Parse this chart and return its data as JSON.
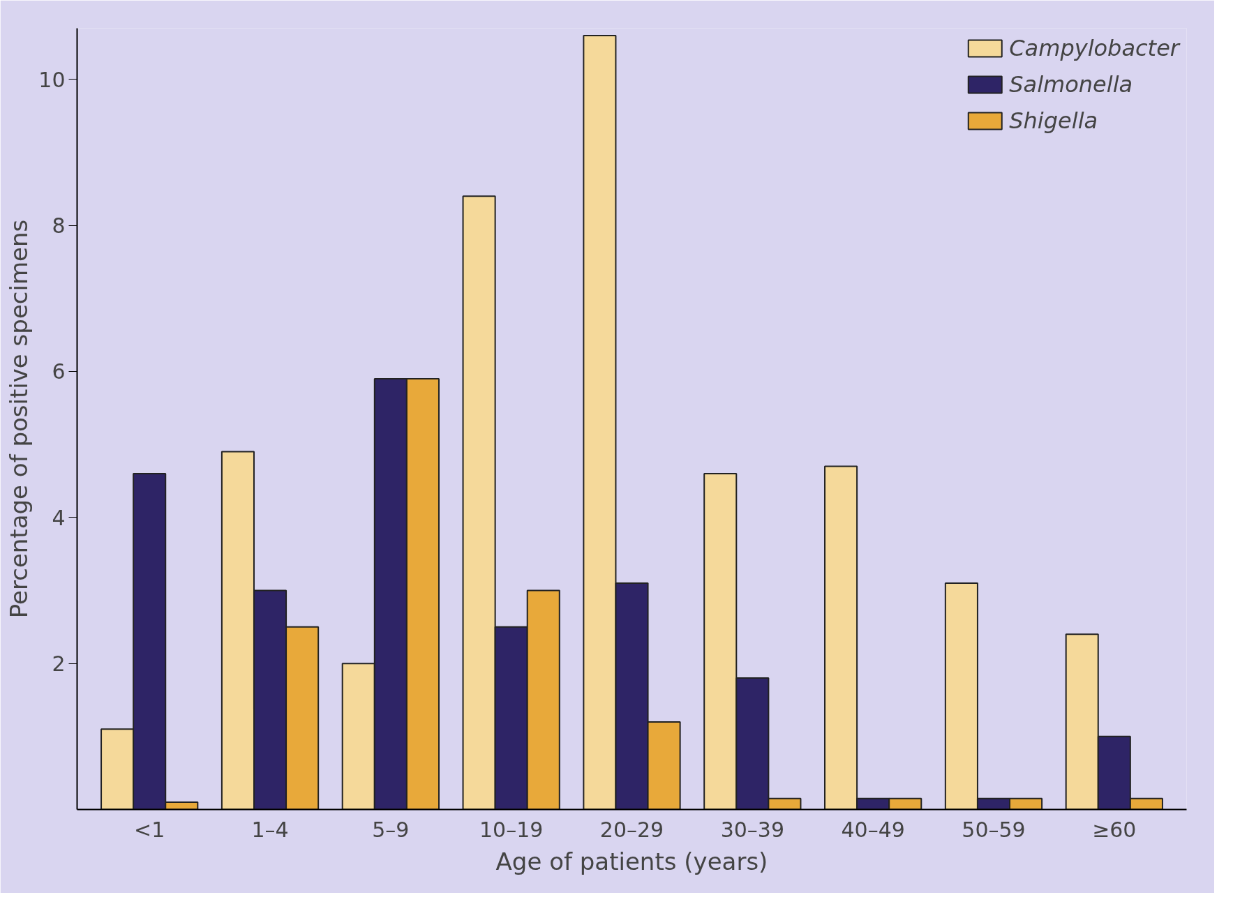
{
  "chart_data": {
    "type": "bar",
    "xlabel": "Age of patients (years)",
    "ylabel": "Percentage of positive specimens",
    "categories": [
      "<1",
      "1–4",
      "5–9",
      "10–19",
      "20–29",
      "30–39",
      "40–49",
      "50–59",
      "≥60"
    ],
    "series": [
      {
        "name": "Campylobacter",
        "color": "#f5d99a",
        "values": [
          1.1,
          4.9,
          2.0,
          8.4,
          10.6,
          4.6,
          4.7,
          3.1,
          2.4
        ]
      },
      {
        "name": "Salmonella",
        "color": "#2e2466",
        "values": [
          4.6,
          3.0,
          5.9,
          2.5,
          3.1,
          1.8,
          0.15,
          0.15,
          1.0
        ]
      },
      {
        "name": "Shigella",
        "color": "#e8a93a",
        "values": [
          0.1,
          2.5,
          5.9,
          3.0,
          1.2,
          0.15,
          0.15,
          0.15,
          0.15
        ]
      }
    ],
    "ylim": [
      0,
      10.7
    ],
    "yticks": [
      2,
      4,
      6,
      8,
      10
    ],
    "grid": false,
    "legend": "top right"
  }
}
